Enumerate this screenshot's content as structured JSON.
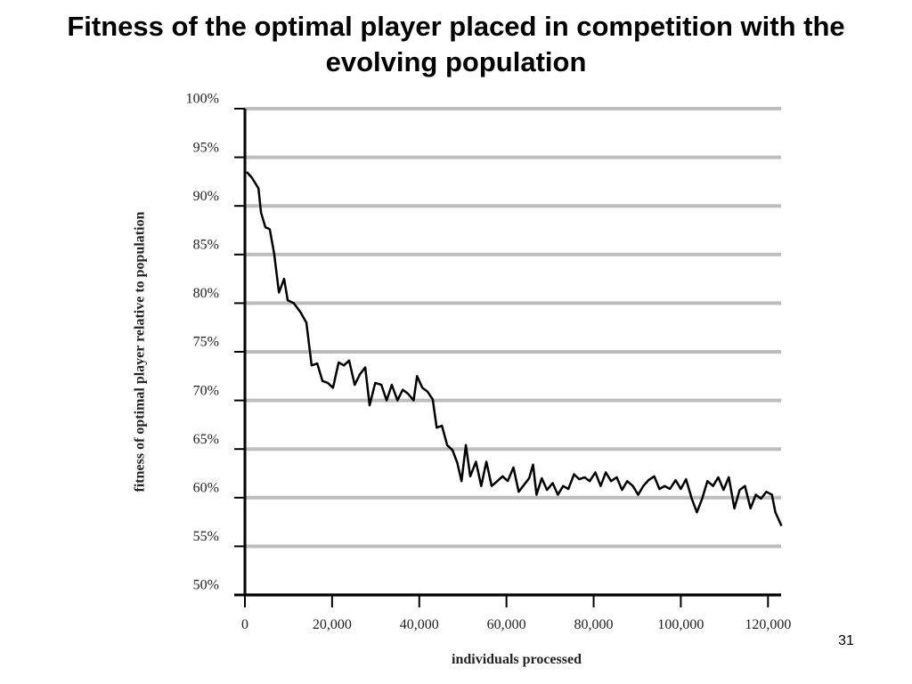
{
  "chart_data": {
    "type": "line",
    "title": "Fitness of the optimal player placed in competition with the evolving population",
    "x_label": "individuals processed",
    "y_label": "fitness of optimal player relative to population",
    "page_number": "31",
    "x": [
      400,
      1600,
      3100,
      3700,
      4700,
      5700,
      6700,
      7800,
      9000,
      9800,
      11200,
      12700,
      14100,
      15300,
      16600,
      17800,
      19000,
      20200,
      21500,
      22700,
      23900,
      25200,
      26400,
      27600,
      28600,
      29900,
      31300,
      32500,
      33700,
      35000,
      36200,
      37400,
      38700,
      39500,
      40700,
      41900,
      43100,
      44000,
      45200,
      46400,
      47600,
      48700,
      49700,
      50700,
      51700,
      53000,
      54200,
      55400,
      56600,
      57900,
      59100,
      60300,
      61600,
      62800,
      64000,
      65200,
      66100,
      66900,
      68100,
      69300,
      70600,
      71800,
      73000,
      74200,
      75500,
      76700,
      77900,
      79100,
      80400,
      81600,
      82800,
      84000,
      85300,
      86500,
      87700,
      89000,
      90200,
      91400,
      92600,
      93900,
      95100,
      96300,
      97500,
      98800,
      100000,
      101200,
      102500,
      103700,
      104900,
      106100,
      107400,
      108600,
      109800,
      111000,
      112300,
      113500,
      114700,
      116000,
      117200,
      118400,
      119600,
      120900,
      121700,
      123100
    ],
    "series": [
      {
        "color": "#000000",
        "values": [
          93.5,
          92.9,
          91.8,
          89.3,
          87.8,
          87.6,
          85.1,
          81.1,
          82.5,
          80.3,
          80.0,
          79.1,
          78.0,
          73.6,
          73.8,
          72.0,
          71.8,
          71.3,
          73.9,
          73.6,
          74.1,
          71.6,
          72.7,
          73.4,
          69.5,
          71.8,
          71.6,
          70.0,
          71.6,
          70.0,
          71.1,
          70.7,
          70.0,
          72.5,
          71.3,
          70.9,
          70.1,
          67.2,
          67.4,
          65.4,
          64.9,
          63.6,
          61.7,
          65.4,
          62.2,
          63.7,
          61.2,
          63.7,
          61.2,
          61.7,
          62.2,
          61.7,
          63.1,
          60.6,
          61.3,
          62.0,
          63.4,
          60.3,
          62.0,
          60.8,
          61.5,
          60.3,
          61.2,
          60.9,
          62.4,
          61.9,
          62.1,
          61.7,
          62.6,
          61.2,
          62.6,
          61.7,
          62.1,
          60.8,
          61.7,
          61.2,
          60.3,
          61.2,
          61.8,
          62.2,
          60.9,
          61.2,
          60.9,
          61.8,
          60.9,
          61.9,
          59.9,
          58.5,
          59.9,
          61.7,
          61.2,
          62.1,
          60.8,
          62.1,
          58.9,
          60.8,
          61.2,
          58.9,
          60.3,
          59.9,
          60.6,
          60.3,
          58.5,
          57.1
        ]
      }
    ],
    "xlim": [
      0,
      123000
    ],
    "xticks": [
      0,
      {
        "value": 20000,
        "label": "20,000"
      },
      {
        "value": 40000,
        "label": "40,000"
      },
      {
        "value": 60000,
        "label": "60,000"
      },
      {
        "value": 80000,
        "label": "80,000"
      },
      {
        "value": 100000,
        "label": "100,000"
      },
      {
        "value": 120000,
        "label": "120,000"
      }
    ],
    "ylim": [
      50,
      100
    ],
    "yticks": [
      {
        "value": 50,
        "label": "50%"
      },
      {
        "value": 55,
        "label": "55%"
      },
      {
        "value": 60,
        "label": "60%"
      },
      {
        "value": 65,
        "label": "65%"
      },
      {
        "value": 70,
        "label": "70%"
      },
      {
        "value": 75,
        "label": "75%"
      },
      {
        "value": 80,
        "label": "80%"
      },
      {
        "value": 85,
        "label": "85%"
      },
      {
        "value": 90,
        "label": "90%"
      },
      {
        "value": 95,
        "label": "95%"
      },
      {
        "value": 100,
        "label": "100%"
      }
    ],
    "grid": true
  }
}
